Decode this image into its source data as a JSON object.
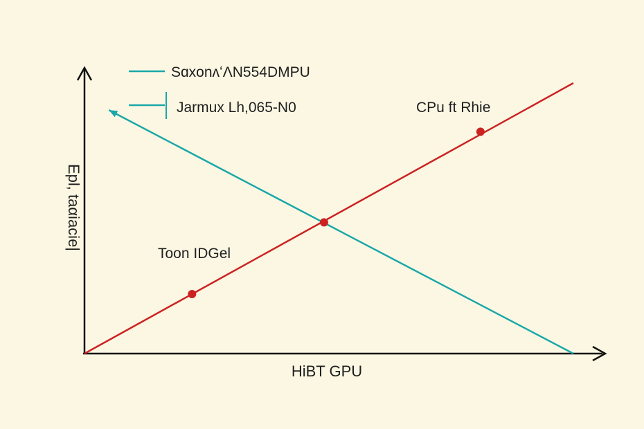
{
  "chart_data": {
    "type": "line",
    "title": "",
    "xlabel": "HiBT GPU",
    "ylabel": "Epl, taαiacie|",
    "xlim": [
      0,
      100
    ],
    "ylim": [
      0,
      100
    ],
    "grid": false,
    "legend": {
      "placement": "top-left",
      "entries": [
        {
          "label": "SɑxonʌʻɅN554DMPU"
        },
        {
          "label": "Jarmux Lh,065-N0"
        }
      ]
    },
    "series": [
      {
        "label": "CPu ft Rhie",
        "color": "#cc2222",
        "points": [
          [
            0,
            0
          ],
          [
            100,
            100
          ]
        ],
        "markers": [
          [
            22,
            22
          ],
          [
            49,
            48.5
          ],
          [
            81,
            82
          ]
        ]
      },
      {
        "label": "Toon IDGel",
        "color": "#1aa7a7",
        "points": [
          [
            5,
            90
          ],
          [
            100,
            0
          ]
        ]
      }
    ],
    "annotations": [
      {
        "text": "CPu ft Rhie",
        "at": "upper-right near red line"
      },
      {
        "text": "Toon IDGel",
        "at": "lower-left near red line"
      }
    ]
  }
}
